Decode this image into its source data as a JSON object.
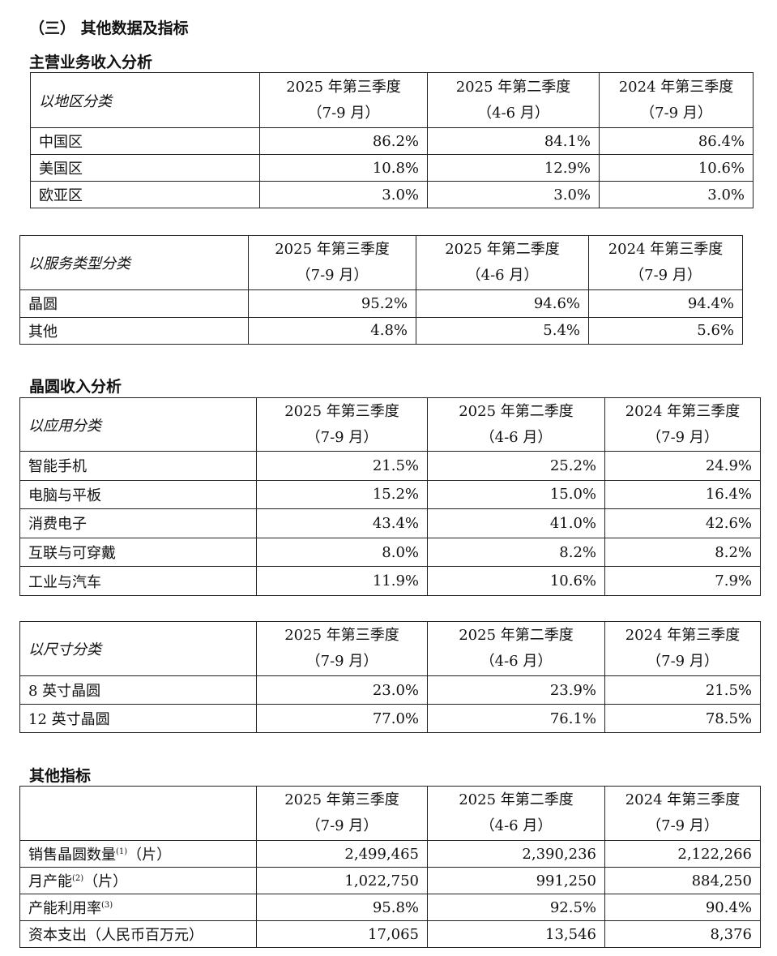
{
  "section_title": "（三） 其他数据及指标",
  "periods": [
    {
      "line1": "2025 年第三季度",
      "line2": "（7-9 月）"
    },
    {
      "line1": "2025 年第二季度",
      "line2": "（4-6 月）"
    },
    {
      "line1": "2024 年第三季度",
      "line2": "（7-9 月）"
    }
  ],
  "headings": {
    "main_revenue": "主营业务收入分析",
    "wafer_revenue": "晶圆收入分析",
    "other_indicators": "其他指标"
  },
  "tables": [
    {
      "category": "以地区分类",
      "rows": [
        {
          "label": "中国区",
          "values": [
            "86.2%",
            "84.1%",
            "86.4%"
          ]
        },
        {
          "label": "美国区",
          "values": [
            "10.8%",
            "12.9%",
            "10.6%"
          ]
        },
        {
          "label": "欧亚区",
          "values": [
            "3.0%",
            "3.0%",
            "3.0%"
          ]
        }
      ]
    },
    {
      "category": "以服务类型分类",
      "rows": [
        {
          "label": "晶圆",
          "values": [
            "95.2%",
            "94.6%",
            "94.4%"
          ]
        },
        {
          "label": "其他",
          "values": [
            "4.8%",
            "5.4%",
            "5.6%"
          ]
        }
      ]
    },
    {
      "category": "以应用分类",
      "rows": [
        {
          "label": "智能手机",
          "values": [
            "21.5%",
            "25.2%",
            "24.9%"
          ]
        },
        {
          "label": "电脑与平板",
          "values": [
            "15.2%",
            "15.0%",
            "16.4%"
          ]
        },
        {
          "label": "消费电子",
          "values": [
            "43.4%",
            "41.0%",
            "42.6%"
          ]
        },
        {
          "label": "互联与可穿戴",
          "values": [
            "8.0%",
            "8.2%",
            "8.2%"
          ]
        },
        {
          "label": "工业与汽车",
          "values": [
            "11.9%",
            "10.6%",
            "7.9%"
          ]
        }
      ]
    },
    {
      "category": "以尺寸分类",
      "rows": [
        {
          "label": "8 英寸晶圆",
          "values": [
            "23.0%",
            "23.9%",
            "21.5%"
          ]
        },
        {
          "label": "12 英寸晶圆",
          "values": [
            "77.0%",
            "76.1%",
            "78.5%"
          ]
        }
      ]
    },
    {
      "category": "",
      "rows": [
        {
          "label": "销售晶圆数量",
          "note": "(1)",
          "suffix": "（片）",
          "values": [
            "2,499,465",
            "2,390,236",
            "2,122,266"
          ]
        },
        {
          "label": "月产能",
          "note": "(2)",
          "suffix": "（片）",
          "values": [
            "1,022,750",
            "991,250",
            "884,250"
          ]
        },
        {
          "label": "产能利用率",
          "note": "(3)",
          "suffix": "",
          "values": [
            "95.8%",
            "92.5%",
            "90.4%"
          ]
        },
        {
          "label": "资本支出（人民币百万元）",
          "values": [
            "17,065",
            "13,546",
            "8,376"
          ]
        }
      ]
    }
  ]
}
